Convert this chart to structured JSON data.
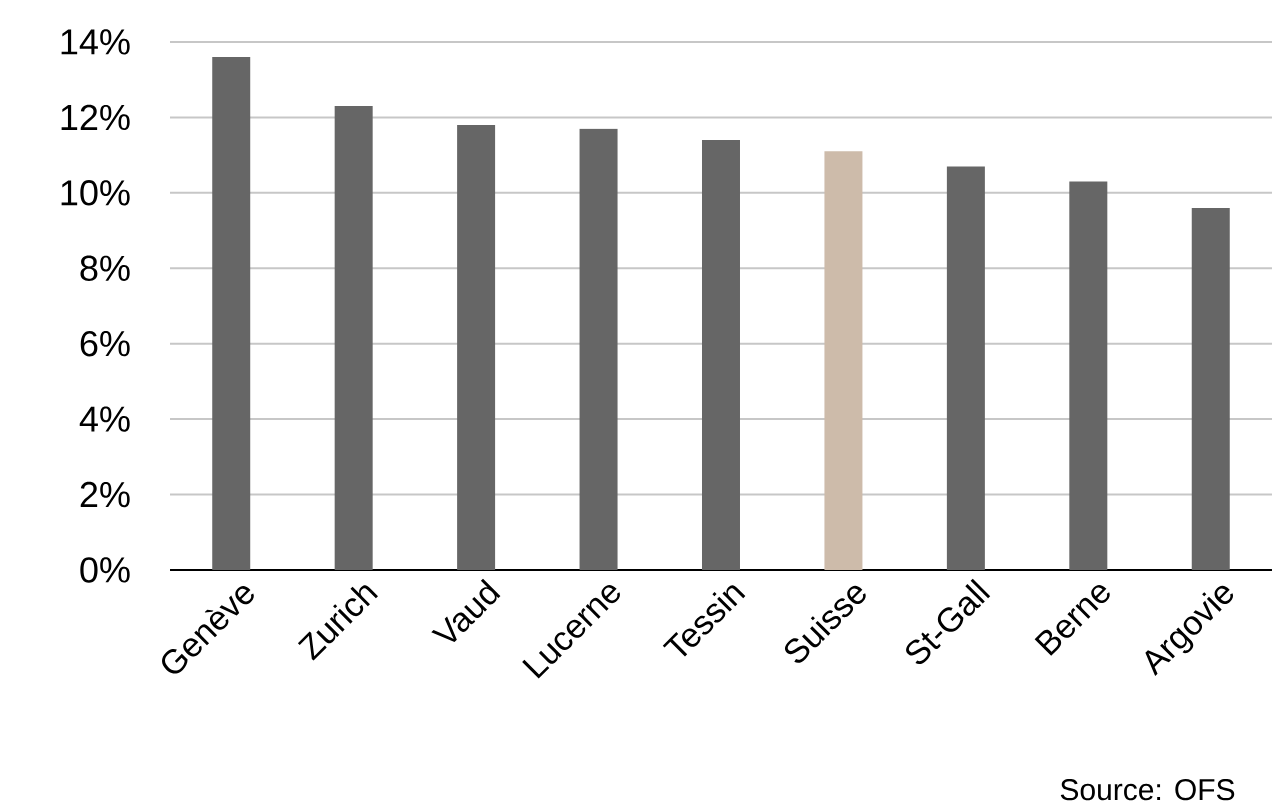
{
  "chart_data": {
    "type": "bar",
    "categories": [
      "Genève",
      "Zurich",
      "Vaud",
      "Lucerne",
      "Tessin",
      "Suisse",
      "St-Gall",
      "Berne",
      "Argovie"
    ],
    "values": [
      13.6,
      12.3,
      11.8,
      11.7,
      11.4,
      11.1,
      10.7,
      10.3,
      9.6
    ],
    "colors": [
      "#666666",
      "#666666",
      "#666666",
      "#666666",
      "#666666",
      "#cdbbaa",
      "#666666",
      "#666666",
      "#666666"
    ],
    "ylim": [
      0,
      14
    ],
    "yticks": [
      {
        "value": 0,
        "label": "0%"
      },
      {
        "value": 2,
        "label": "2%"
      },
      {
        "value": 4,
        "label": "4%"
      },
      {
        "value": 6,
        "label": "6%"
      },
      {
        "value": 8,
        "label": "8%"
      },
      {
        "value": 10,
        "label": "10%"
      },
      {
        "value": 12,
        "label": "12%"
      },
      {
        "value": 14,
        "label": "14%"
      }
    ],
    "grid": "y",
    "annotations": [
      "Source: OFS"
    ]
  }
}
